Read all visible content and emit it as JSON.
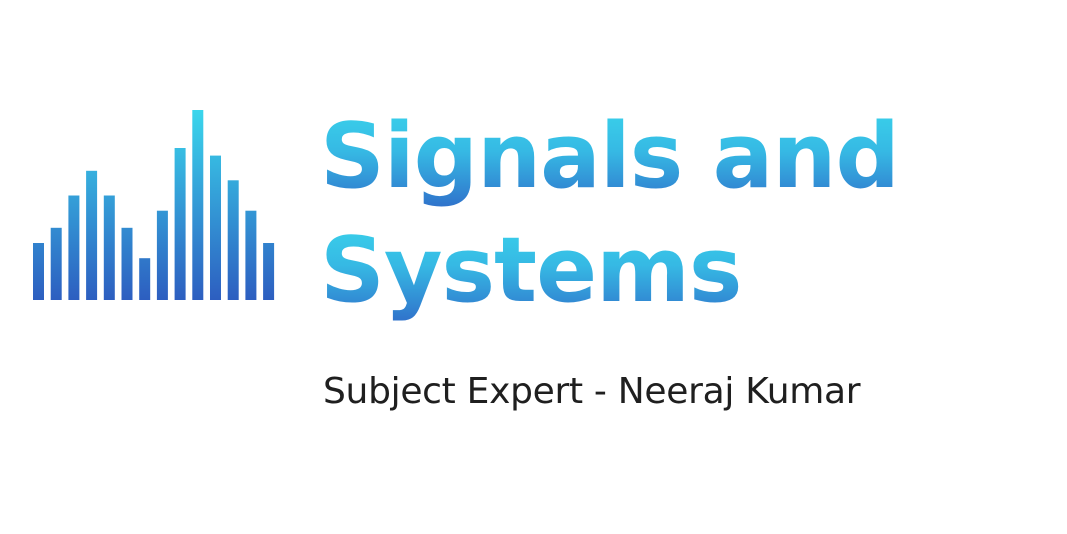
{
  "logo": {
    "icon": "audio-spectrum-bars-icon",
    "levels": [
      0.3,
      0.38,
      0.55,
      0.68,
      0.55,
      0.38,
      0.22,
      0.47,
      0.8,
      1.0,
      0.76,
      0.63,
      0.47,
      0.3
    ],
    "gradient": {
      "top": "#3ad6ec",
      "bottom": "#2d5ec0"
    }
  },
  "title": {
    "line1": "Signals and",
    "line2": "Systems"
  },
  "subtitle": "Subject Expert - Neeraj Kumar"
}
